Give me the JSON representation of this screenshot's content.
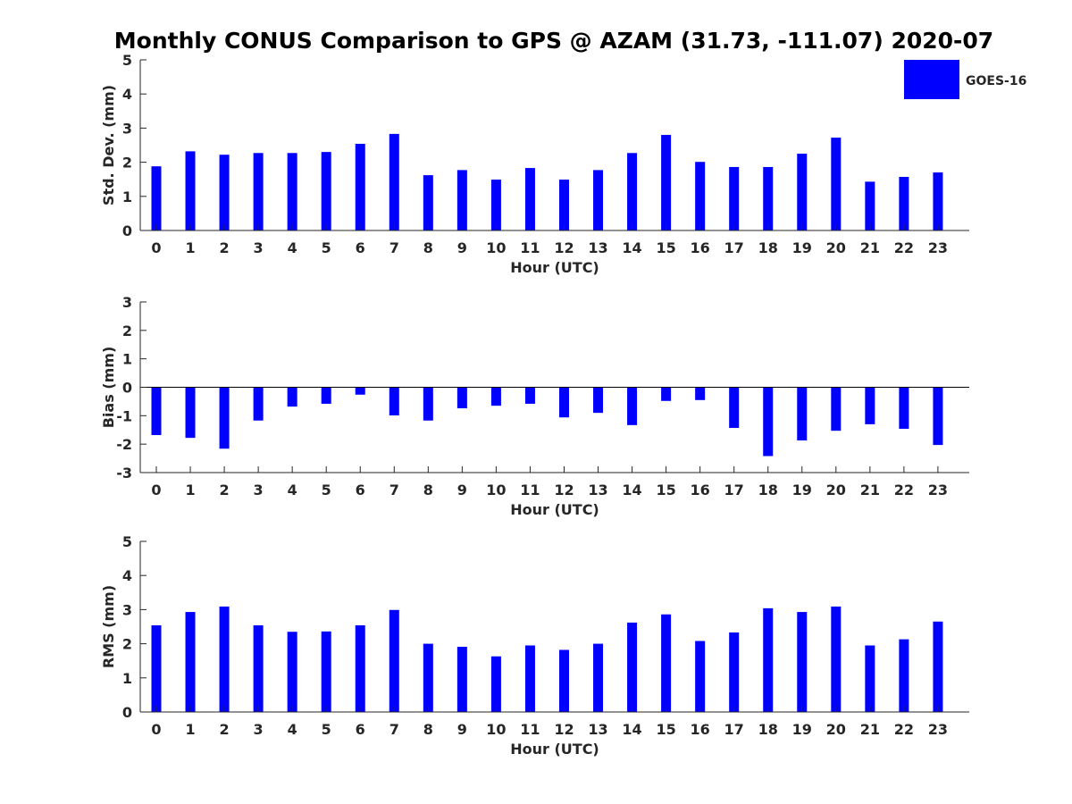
{
  "title": "Monthly CONUS Comparison to GPS @ AZAM (31.73, -111.07) 2020-07",
  "legend": {
    "label": "GOES-16",
    "color": "#0000ff"
  },
  "colors": {
    "bar": "#0000ff",
    "axis": "#262626",
    "zero_line": "#000000"
  },
  "chart_data": [
    {
      "type": "bar",
      "id": "std",
      "xlabel": "Hour (UTC)",
      "ylabel": "Std. Dev. (mm)",
      "categories": [
        "0",
        "1",
        "2",
        "3",
        "4",
        "5",
        "6",
        "7",
        "8",
        "9",
        "10",
        "11",
        "12",
        "13",
        "14",
        "15",
        "16",
        "17",
        "18",
        "19",
        "20",
        "21",
        "22",
        "23"
      ],
      "series": [
        {
          "name": "GOES-16",
          "values": [
            1.88,
            2.32,
            2.22,
            2.27,
            2.27,
            2.3,
            2.54,
            2.83,
            1.62,
            1.77,
            1.49,
            1.83,
            1.49,
            1.77,
            2.27,
            2.8,
            2.01,
            1.86,
            1.86,
            2.25,
            2.72,
            1.43,
            1.57,
            1.7
          ]
        }
      ],
      "ylim": [
        0,
        5
      ],
      "yticks": [
        "0",
        "1",
        "2",
        "3",
        "4",
        "5"
      ]
    },
    {
      "type": "bar",
      "id": "bias",
      "xlabel": "Hour (UTC)",
      "ylabel": "Bias (mm)",
      "categories": [
        "0",
        "1",
        "2",
        "3",
        "4",
        "5",
        "6",
        "7",
        "8",
        "9",
        "10",
        "11",
        "12",
        "13",
        "14",
        "15",
        "16",
        "17",
        "18",
        "19",
        "20",
        "21",
        "22",
        "23"
      ],
      "series": [
        {
          "name": "GOES-16",
          "values": [
            -1.68,
            -1.78,
            -2.16,
            -1.17,
            -0.68,
            -0.58,
            -0.26,
            -0.99,
            -1.17,
            -0.74,
            -0.65,
            -0.58,
            -1.06,
            -0.9,
            -1.33,
            -0.48,
            -0.45,
            -1.43,
            -2.42,
            -1.87,
            -1.53,
            -1.3,
            -1.46,
            -2.03
          ]
        }
      ],
      "ylim": [
        -3,
        3
      ],
      "yticks": [
        "-3",
        "-2",
        "-1",
        "0",
        "1",
        "2",
        "3"
      ]
    },
    {
      "type": "bar",
      "id": "rms",
      "xlabel": "Hour (UTC)",
      "ylabel": "RMS (mm)",
      "categories": [
        "0",
        "1",
        "2",
        "3",
        "4",
        "5",
        "6",
        "7",
        "8",
        "9",
        "10",
        "11",
        "12",
        "13",
        "14",
        "15",
        "16",
        "17",
        "18",
        "19",
        "20",
        "21",
        "22",
        "23"
      ],
      "series": [
        {
          "name": "GOES-16",
          "values": [
            2.54,
            2.93,
            3.09,
            2.54,
            2.35,
            2.36,
            2.54,
            2.99,
            2.0,
            1.91,
            1.63,
            1.95,
            1.82,
            2.0,
            2.62,
            2.86,
            2.08,
            2.33,
            3.04,
            2.93,
            3.09,
            1.95,
            2.13,
            2.65
          ]
        }
      ],
      "ylim": [
        0,
        5
      ],
      "yticks": [
        "0",
        "1",
        "2",
        "3",
        "4",
        "5"
      ]
    }
  ]
}
